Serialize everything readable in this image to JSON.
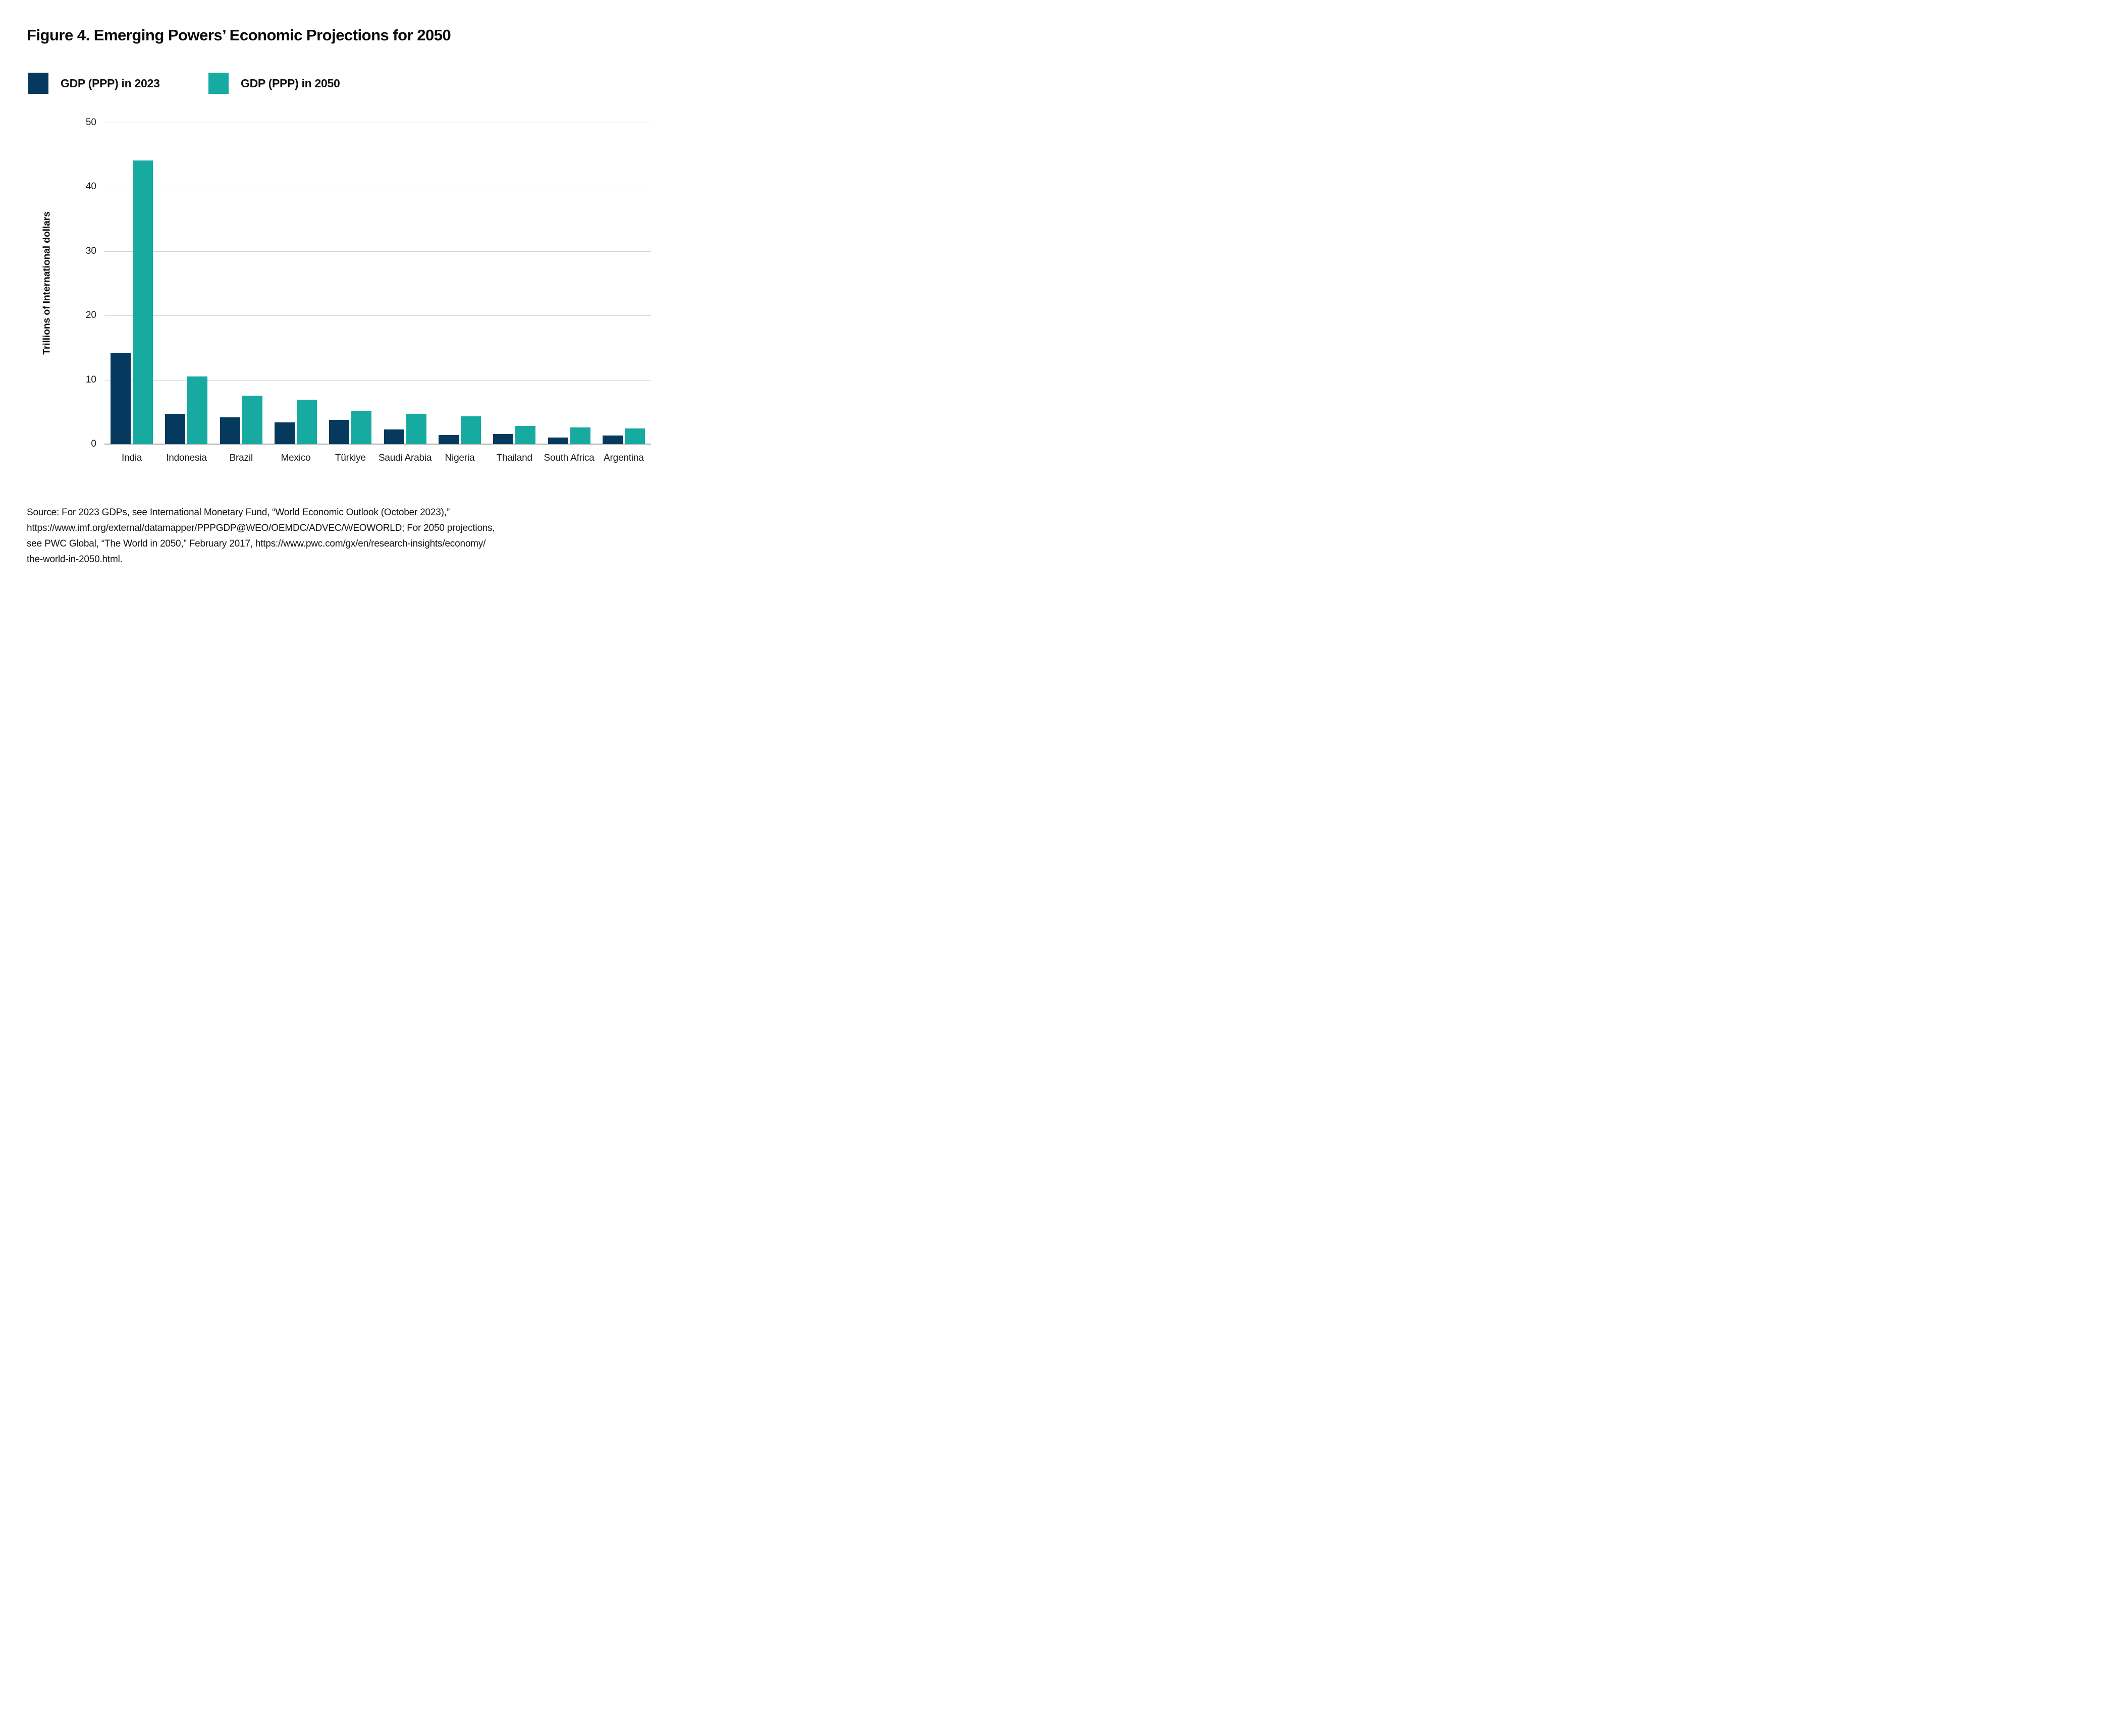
{
  "figure": {
    "title": "Figure 4. Emerging Powers’ Economic Projections for 2050"
  },
  "legend": {
    "items": [
      {
        "label": "GDP (PPP) in 2023",
        "color": "#05395e"
      },
      {
        "label": "GDP (PPP) in 2050",
        "color": "#16aaa0"
      }
    ]
  },
  "chart_data": {
    "type": "bar",
    "title": "Figure 4. Emerging Powers’ Economic Projections for 2050",
    "ylabel": "Trillions of International dollars",
    "xlabel": "",
    "ylim": [
      0,
      50
    ],
    "yticks": [
      0,
      10,
      20,
      30,
      40,
      50
    ],
    "grid": "horizontal",
    "legend_position": "top-left",
    "categories": [
      "India",
      "Indonesia",
      "Brazil",
      "Mexico",
      "Türkiye",
      "Saudi Arabia",
      "Nigeria",
      "Thailand",
      "South Africa",
      "Argentina"
    ],
    "series": [
      {
        "name": "GDP (PPP) in 2023",
        "color": "#05395e",
        "values": [
          14.2,
          4.7,
          4.2,
          3.4,
          3.8,
          2.3,
          1.4,
          1.6,
          1.0,
          1.3
        ]
      },
      {
        "name": "GDP (PPP) in 2050",
        "color": "#16aaa0",
        "values": [
          44.1,
          10.5,
          7.5,
          6.9,
          5.2,
          4.7,
          4.3,
          2.8,
          2.6,
          2.4
        ]
      }
    ]
  },
  "source": {
    "text": "Source: For 2023 GDPs, see International Monetary Fund, “World Economic Outlook (October 2023),”\nhttps://www.imf.org/external/datamapper/PPPGDP@WEO/OEMDC/ADVEC/WEOWORLD; For 2050 projections,\nsee PWC Global, “The World in 2050,” February 2017, https://www.pwc.com/gx/en/research-insights/economy/\nthe-world-in-2050.html."
  },
  "colors": {
    "navy": "#05395e",
    "teal": "#16aaa0",
    "gridline": "#d2d2d2",
    "axis_line": "#a9a9a9"
  }
}
